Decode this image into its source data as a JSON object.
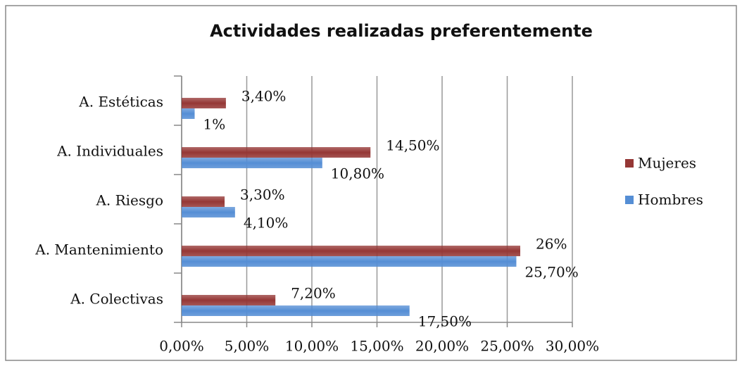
{
  "chart_data": {
    "type": "hbar",
    "title": "Actividades realizadas preferentemente",
    "categories": [
      "A. Estéticas",
      "A. Individuales",
      "A. Riesgo",
      "A. Mantenimiento",
      "A. Colectivas"
    ],
    "series": [
      {
        "name": "Mujeres",
        "color": "#953735",
        "values": [
          3.4,
          14.5,
          3.3,
          26,
          7.2
        ],
        "value_labels": [
          "3,40%",
          "14,50%",
          "3,30%",
          "26%",
          "7,20%"
        ]
      },
      {
        "name": "Hombres",
        "color": "#558ed5",
        "values": [
          1,
          10.8,
          4.1,
          25.7,
          17.5
        ],
        "value_labels": [
          "1%",
          "10,80%",
          "4,10%",
          "25,70%",
          "17,50%"
        ]
      }
    ],
    "xlim": [
      0,
      30
    ],
    "xticks": [
      {
        "value": 0,
        "label": "0,00%"
      },
      {
        "value": 5,
        "label": "5,00%"
      },
      {
        "value": 10,
        "label": "10,00%"
      },
      {
        "value": 15,
        "label": "15,00%"
      },
      {
        "value": 20,
        "label": "20,00%"
      },
      {
        "value": 25,
        "label": "25,00%"
      },
      {
        "value": 30,
        "label": "30,00%"
      }
    ],
    "grid": true,
    "legend": "right"
  }
}
